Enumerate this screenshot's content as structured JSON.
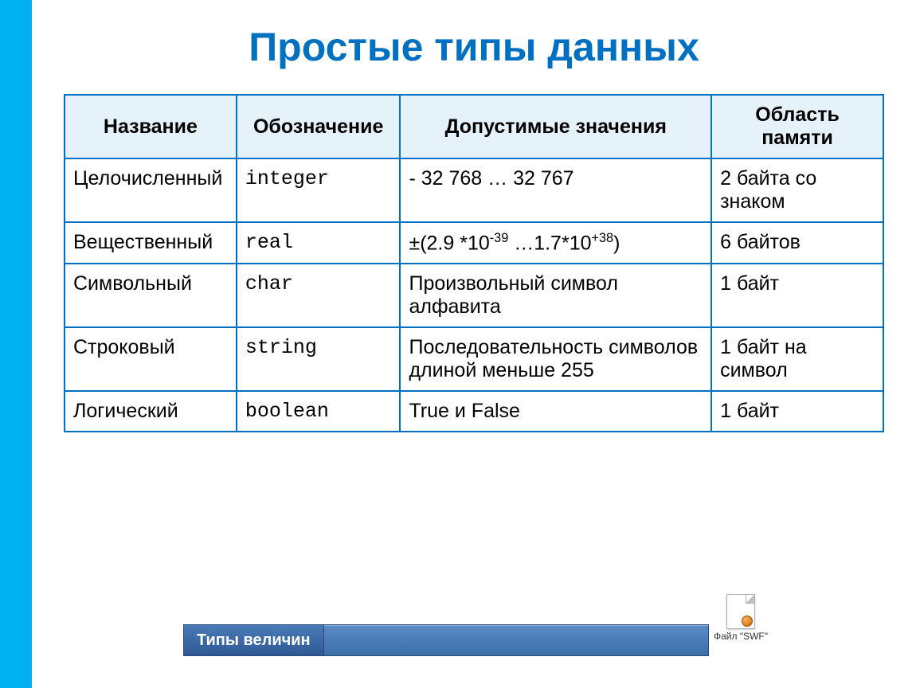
{
  "title": "Простые типы данных",
  "table": {
    "columns": [
      "Название",
      "Обозначение",
      "Допустимые значения",
      "Область памяти"
    ],
    "header_bg": "#e6f2fa",
    "border_color": "#0070c0",
    "cell_fontsize": 25,
    "rows": [
      {
        "name": "Целочисленный",
        "notation": "integer",
        "values_html": "- 32 768 … 32 767",
        "memory": "2 байта со знаком"
      },
      {
        "name": "Вещественный",
        "notation": "real",
        "values_html": "±(2.9 *10<sup>-39</sup> …1.7*10<sup>+38</sup>)",
        "memory": "6 байтов"
      },
      {
        "name": "Символьный",
        "notation": "char",
        "values_html": "Произвольный символ алфавита",
        "memory": "1 байт"
      },
      {
        "name": "Строковый",
        "notation": "string",
        "values_html": "Последовательность символов длиной меньше 255",
        "memory": "1 байт на символ"
      },
      {
        "name": "Логический",
        "notation": "boolean",
        "values_html": "True и False",
        "memory": "1 байт"
      }
    ]
  },
  "taskbar": {
    "button_label": "Типы величин",
    "file_label": "Файл \"SWF\"",
    "bg_gradient": [
      "#5a8cc8",
      "#3b6fa8"
    ]
  },
  "colors": {
    "accent_sidebar": "#00b0f0",
    "title_color": "#0070c0",
    "text_color": "#000000",
    "background": "#ffffff"
  }
}
